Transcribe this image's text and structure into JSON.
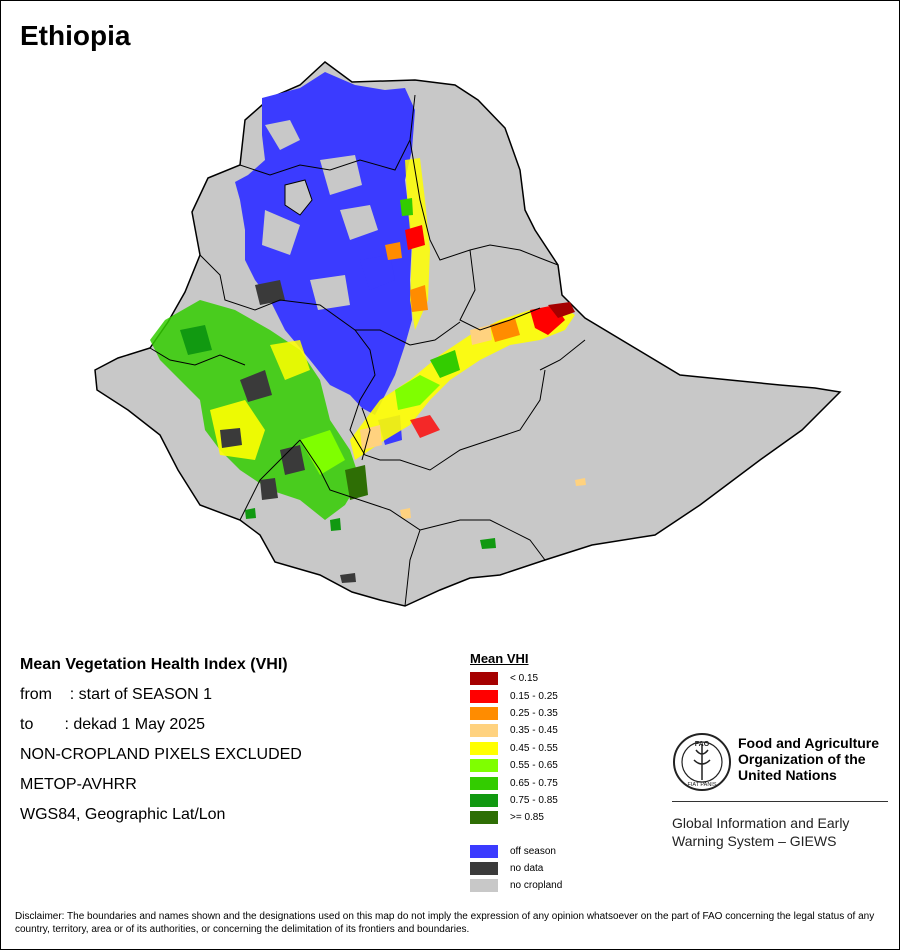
{
  "map_title": "Ethiopia",
  "info": {
    "heading": "Mean Vegetation Health Index (VHI)",
    "from_line": "from    : start of SEASON 1",
    "to_line": "to       : dekad 1 May 2025",
    "exclusion": "NON-CROPLAND PIXELS EXCLUDED",
    "sensor": "METOP-AVHRR",
    "projection": "WGS84, Geographic Lat/Lon"
  },
  "legend": {
    "title": "Mean VHI",
    "classes": [
      {
        "label": "< 0.15",
        "color": "#a50000"
      },
      {
        "label": "0.15 - 0.25",
        "color": "#ff0000"
      },
      {
        "label": "0.25 - 0.35",
        "color": "#ff8c00"
      },
      {
        "label": "0.35 - 0.45",
        "color": "#ffd27f"
      },
      {
        "label": "0.45 - 0.55",
        "color": "#ffff00"
      },
      {
        "label": "0.55 - 0.65",
        "color": "#7fff00"
      },
      {
        "label": "0.65 - 0.75",
        "color": "#33cc00"
      },
      {
        "label": "0.75 - 0.85",
        "color": "#119911"
      },
      {
        "label": ">= 0.85",
        "color": "#2e6e05"
      }
    ],
    "special": [
      {
        "label": "off season",
        "color": "#3b3bff"
      },
      {
        "label": "no data",
        "color": "#3a3a3a"
      },
      {
        "label": "no cropland",
        "color": "#c8c8c8"
      }
    ]
  },
  "org": {
    "name_lines": [
      "Food and Agriculture",
      "Organization of the",
      "United Nations"
    ],
    "logo_text": "FAO",
    "logo_motto": "FIAT PANIS",
    "system_lines": [
      "Global Information and Early",
      "Warning System – GIEWS"
    ]
  },
  "disclaimer": "Disclaimer: The boundaries and names shown and the designations used on this map do not imply the expression of any opinion whatsoever on the part of FAO concerning the legal status of any country, territory, area or of its authorities, or concerning the delimitation of its frontiers and boundaries.",
  "colors": {
    "country_fill": "#c8c8c8",
    "border": "#000000",
    "off_season": "#3b3bff"
  }
}
